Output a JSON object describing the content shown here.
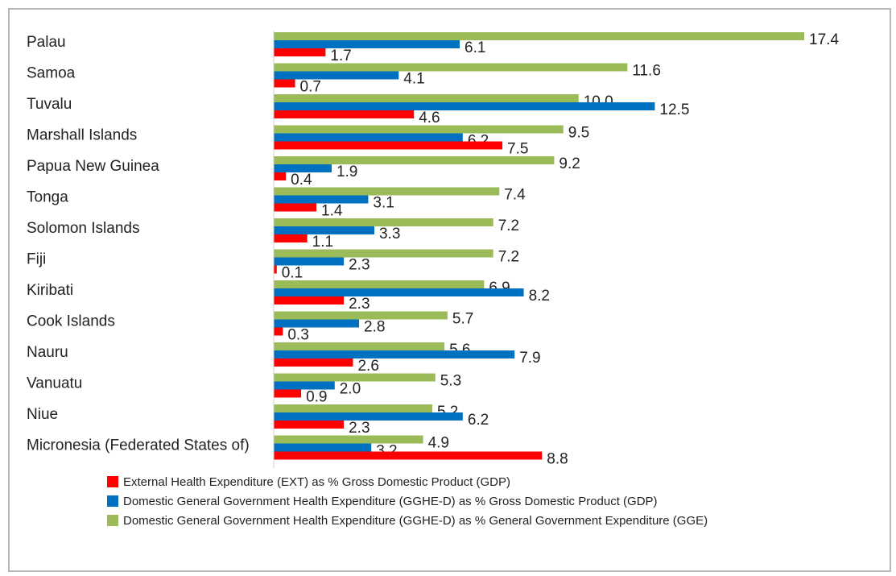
{
  "colors": {
    "ext": "#ff0000",
    "ghed_gdp": "#0070c0",
    "ghed_gge": "#9bbb59"
  },
  "chart_data": {
    "type": "bar",
    "orientation": "horizontal",
    "categories": [
      "Palau",
      "Samoa",
      "Tuvalu",
      "Marshall Islands",
      "Papua New Guinea",
      "Tonga",
      "Solomon Islands",
      "Fiji",
      "Kiribati",
      "Cook Islands",
      "Nauru",
      "Vanuatu",
      "Niue",
      "Micronesia (Federated States of)"
    ],
    "series": [
      {
        "name": "External Health Expenditure (EXT) as % Gross Domestic Product (GDP)",
        "color_key": "ext",
        "values": [
          1.7,
          0.7,
          4.6,
          7.5,
          0.4,
          1.4,
          1.1,
          0.1,
          2.3,
          0.3,
          2.6,
          0.9,
          2.3,
          8.8
        ]
      },
      {
        "name": "Domestic General Government Health Expenditure (GGHE-D) as % Gross Domestic Product (GDP)",
        "color_key": "ghed_gdp",
        "values": [
          6.1,
          4.1,
          12.5,
          6.2,
          1.9,
          3.1,
          3.3,
          2.3,
          8.2,
          2.8,
          7.9,
          2.0,
          6.2,
          3.2
        ]
      },
      {
        "name": "Domestic General Government Health Expenditure (GGHE-D) as % General Government Expenditure (GGE)",
        "color_key": "ghed_gge",
        "values": [
          17.4,
          11.6,
          10.0,
          9.5,
          9.2,
          7.4,
          7.2,
          7.2,
          6.9,
          5.7,
          5.6,
          5.3,
          5.2,
          4.9
        ]
      }
    ],
    "value_labels": [
      [
        "1.7",
        "0.7",
        "4.6",
        "7.5",
        "0.4",
        "1.4",
        "1.1",
        "0.1",
        "2.3",
        "0.3",
        "2.6",
        "0.9",
        "2.3",
        "8.8"
      ],
      [
        "6.1",
        "4.1",
        "12.5",
        "6.2",
        "1.9",
        "3.1",
        "3.3",
        "2.3",
        "8.2",
        "2.8",
        "7.9",
        "2.0",
        "6.2",
        "3.2"
      ],
      [
        "17.4",
        "11.6",
        "10.0",
        "9.5",
        "9.2",
        "7.4",
        "7.2",
        "7.2",
        "6.9",
        "5.7",
        "5.6",
        "5.3",
        "5.2",
        "4.9"
      ]
    ],
    "title": "",
    "xlabel": "",
    "ylabel": "",
    "xlim": [
      0,
      17.4
    ],
    "grid": false,
    "legend_position": "bottom"
  },
  "legend": {
    "items": [
      {
        "label": "External Health Expenditure (EXT) as % Gross Domestic Product (GDP)",
        "color_key": "ext"
      },
      {
        "label": "Domestic General Government Health Expenditure (GGHE-D) as % Gross Domestic Product (GDP)",
        "color_key": "ghed_gdp"
      },
      {
        "label": "Domestic General Government Health Expenditure (GGHE-D) as % General Government Expenditure (GGE)",
        "color_key": "ghed_gge"
      }
    ]
  }
}
